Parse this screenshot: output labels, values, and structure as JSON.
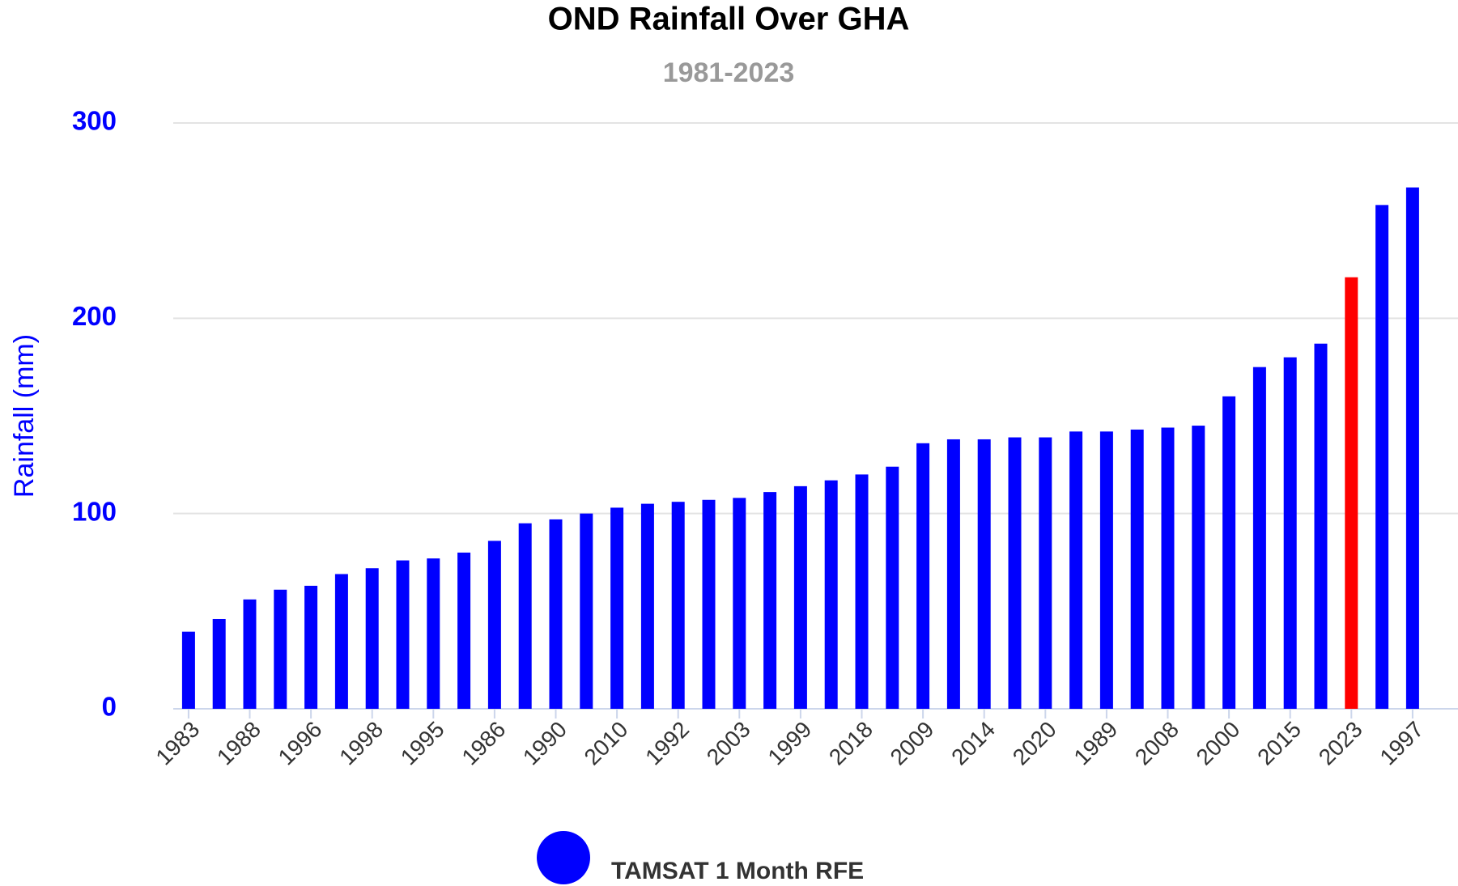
{
  "chart_data": {
    "type": "bar",
    "title": "OND Rainfall Over GHA",
    "subtitle": "1981-2023",
    "y_label": "Rainfall (mm)",
    "categories": [
      "1983",
      null,
      "1988",
      null,
      "1996",
      null,
      "1998",
      null,
      "1995",
      null,
      "1986",
      null,
      "1990",
      null,
      "2010",
      null,
      "1992",
      null,
      "2003",
      null,
      "1999",
      null,
      "2018",
      null,
      "2009",
      null,
      "2014",
      null,
      "2020",
      null,
      "1989",
      null,
      "2008",
      null,
      "2000",
      null,
      "2015",
      null,
      "2023",
      null,
      "1997"
    ],
    "series": [
      {
        "name": "TAMSAT 1 Month RFE",
        "color": "#0000ff",
        "values": [
          39.5,
          46,
          56,
          61,
          63,
          69,
          72,
          76,
          77,
          80,
          86,
          95,
          97,
          100,
          103,
          105,
          106,
          107,
          108,
          111,
          114,
          117,
          120,
          124,
          136,
          138,
          138,
          139,
          139,
          142,
          142,
          143,
          144,
          145,
          160,
          175,
          180,
          187,
          221,
          258,
          267
        ],
        "colors": [
          "#0000ff",
          "#0000ff",
          "#0000ff",
          "#0000ff",
          "#0000ff",
          "#0000ff",
          "#0000ff",
          "#0000ff",
          "#0000ff",
          "#0000ff",
          "#0000ff",
          "#0000ff",
          "#0000ff",
          "#0000ff",
          "#0000ff",
          "#0000ff",
          "#0000ff",
          "#0000ff",
          "#0000ff",
          "#0000ff",
          "#0000ff",
          "#0000ff",
          "#0000ff",
          "#0000ff",
          "#0000ff",
          "#0000ff",
          "#0000ff",
          "#0000ff",
          "#0000ff",
          "#0000ff",
          "#0000ff",
          "#0000ff",
          "#0000ff",
          "#0000ff",
          "#0000ff",
          "#0000ff",
          "#0000ff",
          "#0000ff",
          "#ff0000",
          "#0000ff",
          "#0000ff"
        ]
      }
    ],
    "ylim": [
      0,
      300
    ],
    "yticks": [
      0,
      100,
      200,
      300
    ],
    "grid": true,
    "legend": "bottom"
  }
}
